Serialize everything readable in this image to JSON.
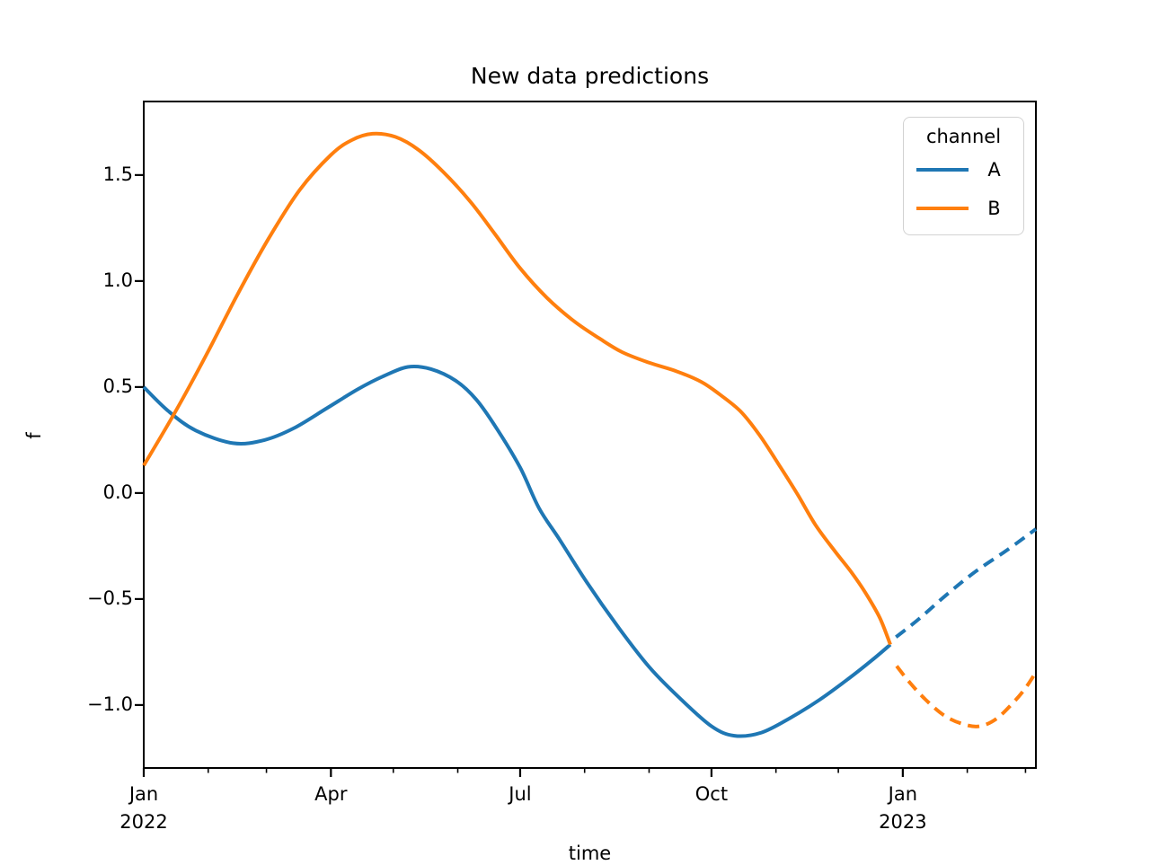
{
  "title": "New data predictions",
  "chart_data": {
    "type": "line",
    "title": "New data predictions",
    "xlabel": "time",
    "ylabel": "f",
    "grid": false,
    "x_unit": "days since 2022-01-01",
    "xlim": [
      0,
      429
    ],
    "ylim": [
      -1.297,
      1.847
    ],
    "axis_color": "#000000",
    "x_major_ticks": [
      {
        "day": 0,
        "line1": "Jan",
        "line2": "2022"
      },
      {
        "day": 90,
        "line1": "Apr",
        "line2": ""
      },
      {
        "day": 181,
        "line1": "Jul",
        "line2": ""
      },
      {
        "day": 273,
        "line1": "Oct",
        "line2": ""
      },
      {
        "day": 365,
        "line1": "Jan",
        "line2": "2023"
      }
    ],
    "x_minor_ticks": [
      31,
      59,
      120,
      151,
      212,
      243,
      304,
      334,
      396,
      424
    ],
    "y_ticks": [
      {
        "value": -1.0,
        "label": "−1.0"
      },
      {
        "value": -0.5,
        "label": "−0.5"
      },
      {
        "value": 0.0,
        "label": "0.0"
      },
      {
        "value": 0.5,
        "label": "0.5"
      },
      {
        "value": 1.0,
        "label": "1.0"
      },
      {
        "value": 1.5,
        "label": "1.5"
      }
    ],
    "legend": {
      "title": "channel",
      "position": "upper right",
      "entries": [
        {
          "label": "A",
          "color": "#1f77b4"
        },
        {
          "label": "B",
          "color": "#ff7f0e"
        }
      ]
    },
    "series": [
      {
        "name": "A",
        "color": "#1f77b4",
        "segments": [
          {
            "style": "solid",
            "points": [
              [
                0,
                0.5
              ],
              [
                12,
                0.385
              ],
              [
                25,
                0.295
              ],
              [
                43,
                0.235
              ],
              [
                58,
                0.25
              ],
              [
                72,
                0.305
              ],
              [
                88,
                0.4
              ],
              [
                103,
                0.49
              ],
              [
                115,
                0.55
              ],
              [
                127,
                0.595
              ],
              [
                138,
                0.585
              ],
              [
                150,
                0.53
              ],
              [
                160,
                0.44
              ],
              [
                170,
                0.3
              ],
              [
                181,
                0.12
              ],
              [
                190,
                -0.07
              ],
              [
                200,
                -0.22
              ],
              [
                213,
                -0.42
              ],
              [
                228,
                -0.63
              ],
              [
                243,
                -0.82
              ],
              [
                258,
                -0.97
              ],
              [
                273,
                -1.1
              ],
              [
                284,
                -1.145
              ],
              [
                297,
                -1.13
              ],
              [
                311,
                -1.06
              ],
              [
                325,
                -0.975
              ],
              [
                339,
                -0.875
              ],
              [
                350,
                -0.79
              ],
              [
                359,
                -0.715
              ]
            ]
          },
          {
            "style": "dashed",
            "points": [
              [
                359,
                -0.7
              ],
              [
                372,
                -0.6
              ],
              [
                386,
                -0.48
              ],
              [
                400,
                -0.37
              ],
              [
                415,
                -0.27
              ],
              [
                429,
                -0.17
              ]
            ]
          }
        ]
      },
      {
        "name": "B",
        "color": "#ff7f0e",
        "segments": [
          {
            "style": "solid",
            "points": [
              [
                0,
                0.13
              ],
              [
                15,
                0.38
              ],
              [
                30,
                0.65
              ],
              [
                45,
                0.935
              ],
              [
                60,
                1.2
              ],
              [
                75,
                1.43
              ],
              [
                90,
                1.595
              ],
              [
                100,
                1.665
              ],
              [
                110,
                1.695
              ],
              [
                121,
                1.68
              ],
              [
                132,
                1.62
              ],
              [
                144,
                1.515
              ],
              [
                157,
                1.375
              ],
              [
                169,
                1.22
              ],
              [
                181,
                1.06
              ],
              [
                194,
                0.92
              ],
              [
                207,
                0.81
              ],
              [
                219,
                0.73
              ],
              [
                230,
                0.665
              ],
              [
                243,
                0.615
              ],
              [
                256,
                0.575
              ],
              [
                268,
                0.525
              ],
              [
                277,
                0.465
              ],
              [
                287,
                0.385
              ],
              [
                296,
                0.275
              ],
              [
                305,
                0.14
              ],
              [
                314,
                0.0
              ],
              [
                323,
                -0.15
              ],
              [
                332,
                -0.27
              ],
              [
                340,
                -0.37
              ],
              [
                347,
                -0.47
              ],
              [
                354,
                -0.59
              ],
              [
                359,
                -0.715
              ]
            ]
          },
          {
            "style": "dashed",
            "points": [
              [
                360,
                -0.79
              ],
              [
                368,
                -0.89
              ],
              [
                376,
                -0.975
              ],
              [
                385,
                -1.05
              ],
              [
                394,
                -1.09
              ],
              [
                402,
                -1.1
              ],
              [
                410,
                -1.065
              ],
              [
                418,
                -0.99
              ],
              [
                424,
                -0.92
              ],
              [
                429,
                -0.845
              ]
            ]
          }
        ]
      }
    ]
  }
}
